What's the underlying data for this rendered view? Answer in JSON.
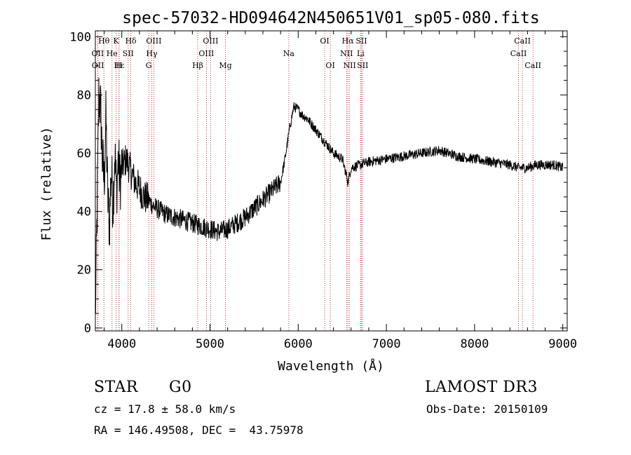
{
  "chart_data": {
    "type": "line",
    "title": "spec-57032-HD094642N450651V01_sp05-080.fits",
    "xlabel": "Wavelength (Å)",
    "ylabel": "Flux (relative)",
    "xlim": [
      3700,
      9050
    ],
    "ylim": [
      -1,
      102
    ],
    "xticks": [
      4000,
      5000,
      6000,
      7000,
      8000,
      9000
    ],
    "yticks": [
      0,
      20,
      40,
      60,
      80,
      100
    ],
    "series": [
      {
        "name": "spectrum",
        "x": [
          3700,
          3720,
          3740,
          3760,
          3780,
          3800,
          3820,
          3840,
          3860,
          3880,
          3900,
          3920,
          3940,
          3960,
          3980,
          4000,
          4050,
          4100,
          4150,
          4200,
          4250,
          4300,
          4350,
          4400,
          4450,
          4500,
          4600,
          4700,
          4800,
          4900,
          5000,
          5100,
          5200,
          5300,
          5400,
          5500,
          5600,
          5700,
          5800,
          5850,
          5900,
          5950,
          6000,
          6050,
          6100,
          6200,
          6300,
          6400,
          6500,
          6550,
          6563,
          6600,
          6700,
          6800,
          7000,
          7200,
          7400,
          7600,
          7800,
          8000,
          8200,
          8400,
          8500,
          8600,
          8700,
          8800,
          8900,
          9000
        ],
        "y": [
          3,
          40,
          80,
          75,
          58,
          50,
          72,
          45,
          35,
          55,
          42,
          60,
          47,
          58,
          50,
          55,
          58,
          54,
          50,
          48,
          45,
          44,
          42,
          41,
          40,
          39,
          38,
          37,
          36,
          35,
          34,
          33,
          34,
          36,
          38,
          41,
          44,
          47,
          50,
          58,
          68,
          76,
          75,
          73,
          72,
          68,
          64,
          60,
          58,
          52,
          50,
          55,
          56,
          57,
          58,
          59,
          60,
          61,
          59,
          58,
          57,
          56,
          55,
          55,
          56,
          56,
          56,
          55
        ]
      }
    ],
    "lines": [
      {
        "label": "Hθ",
        "wave": 3797,
        "row": 0
      },
      {
        "label": "K",
        "wave": 3934,
        "row": 0
      },
      {
        "label": "Hδ",
        "wave": 4102,
        "row": 0
      },
      {
        "label": "OIII",
        "wave": 4363,
        "row": 0
      },
      {
        "label": "OIII",
        "wave": 5007,
        "row": 0
      },
      {
        "label": "OI",
        "wave": 6300,
        "row": 0
      },
      {
        "label": "Hα",
        "wave": 6563,
        "row": 0
      },
      {
        "label": "SII",
        "wave": 6717,
        "row": 0
      },
      {
        "label": "CaII",
        "wave": 8542,
        "row": 0
      },
      {
        "label": "OII",
        "wave": 3727,
        "row": 1
      },
      {
        "label": "He",
        "wave": 3889,
        "row": 1
      },
      {
        "label": "SII",
        "wave": 4072,
        "row": 1
      },
      {
        "label": "Hγ",
        "wave": 4340,
        "row": 1
      },
      {
        "label": "OIII",
        "wave": 4959,
        "row": 1
      },
      {
        "label": "Na",
        "wave": 5893,
        "row": 1
      },
      {
        "label": "NII",
        "wave": 6548,
        "row": 1
      },
      {
        "label": "Li",
        "wave": 6708,
        "row": 1
      },
      {
        "label": "CaII",
        "wave": 8498,
        "row": 1
      },
      {
        "label": "OII",
        "wave": 3729,
        "row": 2
      },
      {
        "label": "Hε",
        "wave": 3970,
        "row": 2
      },
      {
        "label": "H",
        "wave": 3968,
        "row": 2
      },
      {
        "label": "G",
        "wave": 4305,
        "row": 2
      },
      {
        "label": "Hβ",
        "wave": 4861,
        "row": 2
      },
      {
        "label": "Mg",
        "wave": 5175,
        "row": 2
      },
      {
        "label": "OI",
        "wave": 6364,
        "row": 2
      },
      {
        "label": "NII",
        "wave": 6583,
        "row": 2
      },
      {
        "label": "SII",
        "wave": 6731,
        "row": 2
      },
      {
        "label": "CaII",
        "wave": 8662,
        "row": 2
      }
    ]
  },
  "info": {
    "class_type": "STAR",
    "subclass": "G0",
    "survey": "LAMOST DR3",
    "cz": "cz = 17.8 ± 58.0 km/s",
    "obs_date": "Obs-Date: 20150109",
    "radec": "RA = 146.49508, DEC =  43.75978"
  }
}
